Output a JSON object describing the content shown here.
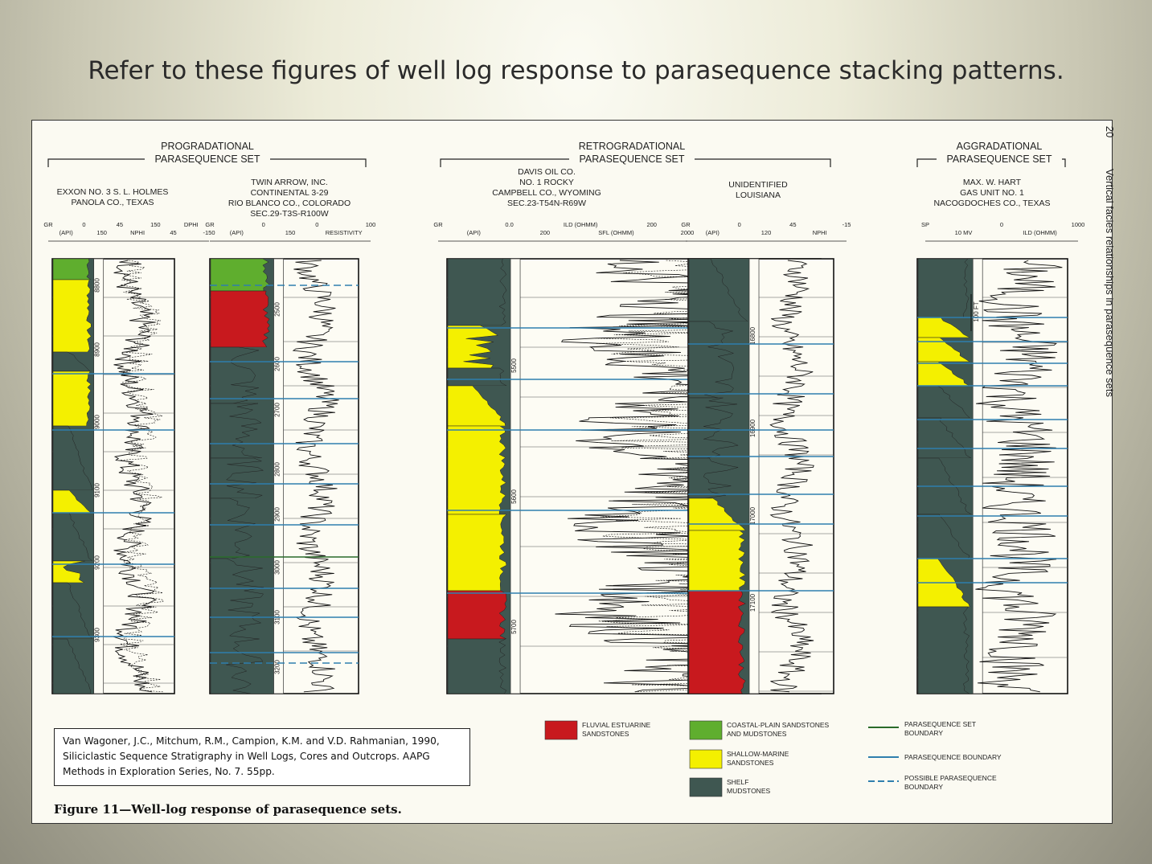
{
  "slide": {
    "title": "Refer to these figures of well log response to parasequence stacking patterns."
  },
  "groups": {
    "progradational": {
      "line1": "PROGRADATIONAL",
      "line2": "PARASEQUENCE SET"
    },
    "retrogradational": {
      "line1": "RETROGRADATIONAL",
      "line2": "PARASEQUENCE SET"
    },
    "aggradational": {
      "line1": "AGGRADATIONAL",
      "line2": "PARASEQUENCE SET"
    }
  },
  "wells": [
    {
      "name_lines": [
        "EXXON NO. 3 S. L. HOLMES",
        "PANOLA CO., TEXAS"
      ],
      "scales": [
        "GR",
        "(API)",
        "0",
        "150",
        "45",
        "NPHI",
        "150",
        "45",
        "DPHI",
        "-150"
      ],
      "depths": [
        "8800",
        "8900",
        "9000",
        "9100",
        "9200",
        "9300"
      ]
    },
    {
      "name_lines": [
        "TWIN ARROW, INC.",
        "CONTINENTAL 3-29",
        "RIO BLANCO CO., COLORADO",
        "SEC.29-T3S-R100W"
      ],
      "scales": [
        "GR",
        "(API)",
        "0",
        "150",
        "0",
        "RESISTIVITY",
        "100"
      ],
      "depths": [
        "2500",
        "2600",
        "2700",
        "2800",
        "2900",
        "3000",
        "3100",
        "3200"
      ]
    },
    {
      "name_lines": [
        "DAVIS OIL CO.",
        "NO. 1 ROCKY",
        "CAMPBELL CO., WYOMING",
        "SEC.23-T54N-R69W"
      ],
      "scales": [
        "GR",
        "(API)",
        "0.0",
        "200",
        "ILD (OHMM)",
        "SFL (OHMM)",
        "200",
        "2000"
      ],
      "depths": [
        "5500",
        "5600",
        "5700"
      ]
    },
    {
      "name_lines": [
        "UNIDENTIFIED",
        "LOUISIANA"
      ],
      "scales": [
        "GR",
        "(API)",
        "0",
        "120",
        "45",
        "NPHI",
        "-15"
      ],
      "depths": [
        "16800",
        "16900",
        "17000",
        "17100"
      ]
    },
    {
      "name_lines": [
        "MAX. W. HART",
        "GAS UNIT NO. 1",
        "NACOGDOCHES CO., TEXAS"
      ],
      "scales": [
        "SP",
        "10 MV",
        "0",
        "ILD (OHMM)",
        "1000"
      ],
      "depths": [
        "100 FT"
      ]
    }
  ],
  "legend": {
    "facies": [
      {
        "label_lines": [
          "FLUVIAL ESTUARINE",
          "SANDSTONES"
        ],
        "color": "#c8191e"
      },
      {
        "label_lines": [
          "COASTAL-PLAIN SANDSTONES",
          "AND MUDSTONES"
        ],
        "color": "#5fae2e"
      },
      {
        "label_lines": [
          "SHALLOW-MARINE",
          "SANDSTONES"
        ],
        "color": "#f4f000"
      },
      {
        "label_lines": [
          "SHELF",
          "MUDSTONES"
        ],
        "color": "#3f5751"
      }
    ],
    "boundaries": [
      {
        "label_lines": [
          "PARASEQUENCE SET",
          "BOUNDARY"
        ],
        "style": "solid-green"
      },
      {
        "label_lines": [
          "PARASEQUENCE BOUNDARY"
        ],
        "style": "solid-blue"
      },
      {
        "label_lines": [
          "POSSIBLE PARASEQUENCE",
          "BOUNDARY"
        ],
        "style": "dashed-blue"
      }
    ]
  },
  "side_text": "Vertical facies relationships in parasequence sets",
  "page_number": "20",
  "citation": "Van Wagoner, J.C., Mitchum, R.M., Campion, K.M. and V.D. Rahmanian, 1990, Siliciclastic Sequence Stratigraphy in Well Logs, Cores and Outcrops. AAPG Methods in Exploration Series, No. 7. 55pp.",
  "caption": "Figure 11—Well-log response of parasequence sets."
}
